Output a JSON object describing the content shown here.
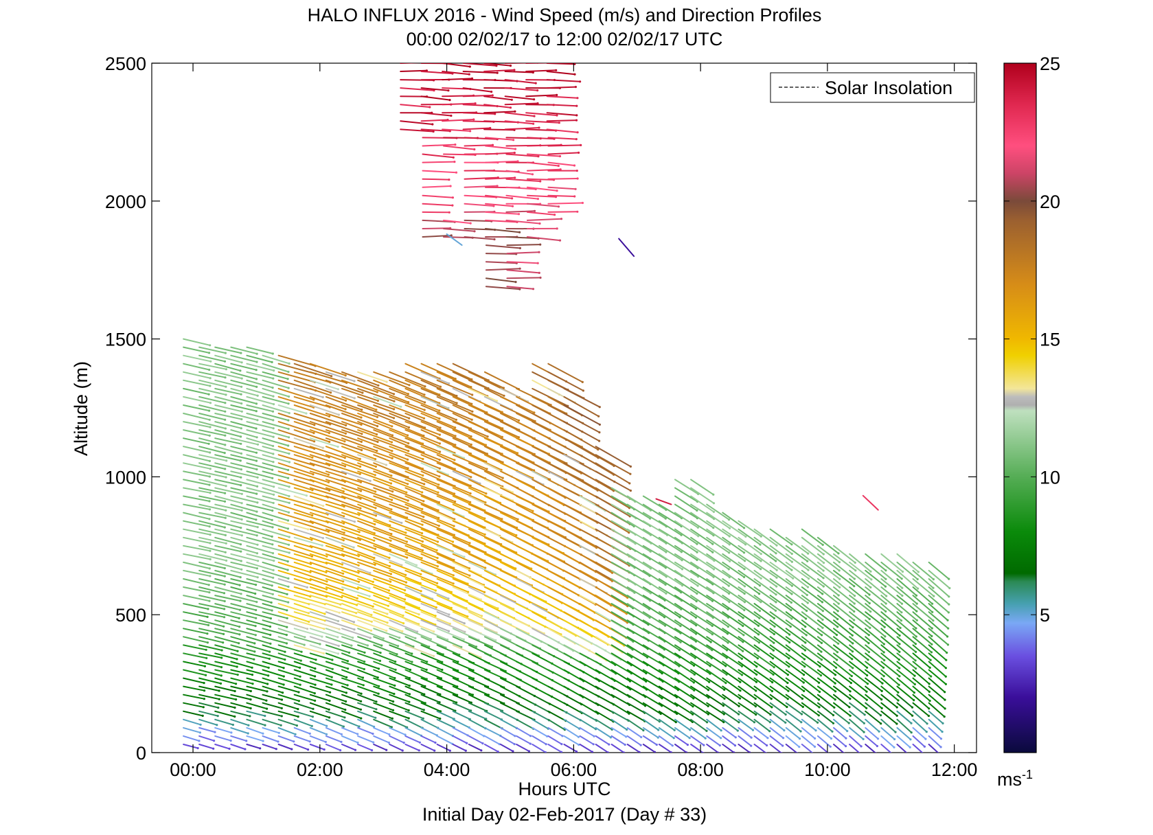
{
  "figure": {
    "title_line1": "HALO INFLUX 2016 - Wind Speed (m/s) and Direction Profiles",
    "title_line2": "00:00 02/02/17 to 12:00 02/02/17  UTC",
    "xlabel": "Hours UTC",
    "footer": "Initial Day 02-Feb-2017 (Day # 33)",
    "ylabel": "Altitude (m)",
    "legend_label": "Solar Insolation",
    "colorbar_unit": "ms",
    "colorbar_unit_exp": "-1"
  },
  "chart_data": {
    "type": "quiver",
    "title": "HALO INFLUX 2016 - Wind Speed (m/s) and Direction Profiles",
    "subtitle": "00:00 02/02/17 to 12:00 02/02/17  UTC",
    "xlabel": "Hours UTC",
    "ylabel": "Altitude (m)",
    "x_ticks": [
      "00:00",
      "02:00",
      "04:00",
      "06:00",
      "08:00",
      "10:00",
      "12:00"
    ],
    "x_tick_values": [
      0,
      2,
      4,
      6,
      8,
      10,
      12
    ],
    "xlim": [
      -0.65,
      12.35
    ],
    "y_ticks": [
      0,
      500,
      1000,
      1500,
      2000,
      2500
    ],
    "ylim": [
      0,
      2500
    ],
    "legend": {
      "entries": [
        "Solar Insolation"
      ],
      "placement": "top-right"
    },
    "colorbar": {
      "range": [
        0,
        25
      ],
      "ticks": [
        5,
        10,
        15,
        20,
        25
      ],
      "unit": "ms-1",
      "colors": [
        {
          "value": 0,
          "color": "#0a0a3c"
        },
        {
          "value": 2,
          "color": "#3a0e9a"
        },
        {
          "value": 3.5,
          "color": "#6a4fe0"
        },
        {
          "value": 4.7,
          "color": "#7aa8f5"
        },
        {
          "value": 5.4,
          "color": "#46a0b0"
        },
        {
          "value": 6.2,
          "color": "#2b8a55"
        },
        {
          "value": 6.5,
          "color": "#006a00"
        },
        {
          "value": 8,
          "color": "#0a8a0a"
        },
        {
          "value": 10,
          "color": "#55ad55"
        },
        {
          "value": 12.4,
          "color": "#bfe0bf"
        },
        {
          "value": 12.6,
          "color": "#b0b0b0"
        },
        {
          "value": 12.9,
          "color": "#bcbcbc"
        },
        {
          "value": 13.2,
          "color": "#f3e69a"
        },
        {
          "value": 14.4,
          "color": "#f0d000"
        },
        {
          "value": 15,
          "color": "#f0b800"
        },
        {
          "value": 17,
          "color": "#d68c18"
        },
        {
          "value": 19.3,
          "color": "#9b6030"
        },
        {
          "value": 20,
          "color": "#7a4a3a"
        },
        {
          "value": 21,
          "color": "#cc4466"
        },
        {
          "value": 22,
          "color": "#ff4f7f"
        },
        {
          "value": 23.5,
          "color": "#e02850"
        },
        {
          "value": 25,
          "color": "#b0001c"
        }
      ]
    },
    "time_hours": [
      0,
      0.25,
      0.5,
      0.75,
      1,
      1.25,
      1.5,
      1.75,
      2,
      2.25,
      2.5,
      2.75,
      3,
      3.25,
      3.5,
      3.75,
      4,
      4.25,
      4.5,
      4.75,
      5,
      5.25,
      5.5,
      5.75,
      6,
      6.25,
      6.5,
      6.75,
      7,
      7.25,
      7.5,
      7.75,
      8,
      8.25,
      8.5,
      8.75,
      9,
      9.25,
      9.5,
      9.75,
      10,
      10.25,
      10.5,
      10.75,
      11,
      11.25,
      11.5,
      11.75
    ],
    "profile_tops_m": [
      1500,
      1490,
      1480,
      1490,
      1490,
      1450,
      1450,
      1430,
      1420,
      1380,
      1380,
      1380,
      1380,
      1380,
      1420,
      1420,
      1420,
      1420,
      1380,
      1380,
      1330,
      1330,
      1420,
      1420,
      1320,
      1130,
      1130,
      960,
      930,
      930,
      900,
      990,
      990,
      900,
      870,
      850,
      820,
      810,
      800,
      830,
      800,
      760,
      740,
      740,
      730,
      720,
      700,
      700
    ],
    "time_steps": 48,
    "altitude_step_m": 30,
    "wind_speed_profile_ms": [
      {
        "altitude_m": 25,
        "speed": 3
      },
      {
        "altitude_m": 60,
        "speed": 4.2
      },
      {
        "altitude_m": 95,
        "speed": 4.8
      },
      {
        "altitude_m": 130,
        "speed": 6
      },
      {
        "altitude_m": 250,
        "speed": 7.5
      },
      {
        "altitude_m": 450,
        "speed": 9.5
      },
      {
        "altitude_m": 700,
        "speed": 11
      },
      {
        "altitude_m": 1000,
        "speed": 11
      }
    ],
    "wind_pattern": "Near-surface winds are weak (purple/blue). Between 150 m and the boundary-layer top, winds are green at 7–12 m/s, directed toward the right and downward. From 01:30–06:30 in the 400–1400 m layer, winds strengthen to 13–18 m/s (yellow/orange), mixed with grey values of about 12.8 m/s. Between 1650 and 2500 m, from roughly 03:30–06:00, an isolated jet blows at 20–25 m/s toward the east (red/brown). After 07:00 the profile top falls from about 1000 m to about 700 m, and arrows steepen toward the southeast."
  }
}
